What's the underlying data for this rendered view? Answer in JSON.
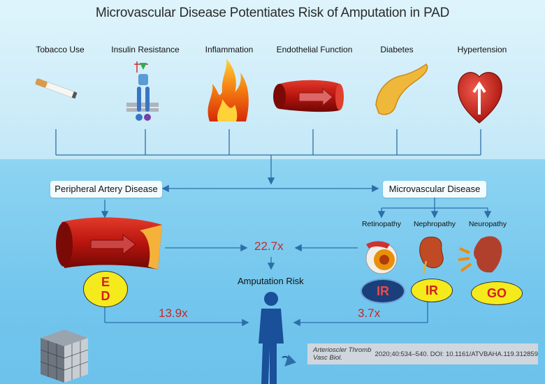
{
  "title": "Microvascular Disease Potentiates Risk of Amputation in PAD",
  "risk_factors": [
    {
      "label": "Tobacco Use",
      "icon": "cigarette-icon"
    },
    {
      "label": "Insulin Resistance",
      "icon": "insulin-receptor-icon"
    },
    {
      "label": "Inflammation",
      "icon": "flame-icon"
    },
    {
      "label": "Endothelial Function",
      "icon": "blood-vessel-icon"
    },
    {
      "label": "Diabetes",
      "icon": "pancreas-icon"
    },
    {
      "label": "Hypertension",
      "icon": "heart-icon"
    }
  ],
  "pad_label": "Peripheral Artery Disease",
  "mvd_label": "Microvascular Disease",
  "mvd_types": [
    {
      "label": "Retinopathy",
      "icon": "eye-icon",
      "badge": "IR"
    },
    {
      "label": "Nephropathy",
      "icon": "kidney-icon",
      "badge": "IR"
    },
    {
      "label": "Neuropathy",
      "icon": "foot-icon",
      "badge": "GO"
    }
  ],
  "ed_badge": {
    "top": "E",
    "bottom": "D"
  },
  "amputation_label": "Amputation Risk",
  "multipliers": {
    "combined": "22.7x",
    "pad": "13.9x",
    "mvd": "3.7x"
  },
  "citation": {
    "journal": "Arterioscler Thromb Vasc Biol.",
    "details": " 2020;40:534–540. DOI: 10.1161/ATVBAHA.119.312859"
  },
  "colors": {
    "arrow": "#2c6fa8",
    "multiplier": "#c62828",
    "badge_yellow": "#f5ea1c",
    "badge_navy": "#1a3f7a"
  }
}
